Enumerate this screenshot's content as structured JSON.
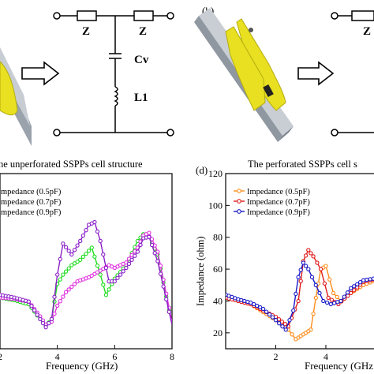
{
  "panel_b_label": "(b)",
  "panel_d_label": "(d)",
  "circuit": {
    "z_left": "Z",
    "z_right": "Z",
    "cv": "Cv",
    "l1": "L1",
    "z_right_partial": "Z"
  },
  "chart_data": [
    {
      "type": "line",
      "title": "he unperforated SSPPs cell structure",
      "xlabel": "Frequency (GHz)",
      "ylabel": "",
      "xlim": [
        2,
        8
      ],
      "ylim": [
        0,
        130
      ],
      "xticks": [
        2,
        4,
        6,
        8
      ],
      "yticks": [],
      "legend_position": "top-left",
      "series": [
        {
          "name": "mpedance (0.5pF)",
          "color": "#1fdc1f",
          "x": [
            2.0,
            2.5,
            3.0,
            3.4,
            3.6,
            3.8,
            4.0,
            4.2,
            4.5,
            4.8,
            5.2,
            5.5,
            5.7,
            6.0,
            6.4,
            6.8,
            7.0,
            7.2,
            7.5,
            8.0
          ],
          "y": [
            38,
            36,
            33,
            22,
            17,
            22,
            48,
            55,
            62,
            66,
            75,
            55,
            40,
            52,
            62,
            80,
            85,
            83,
            70,
            18
          ]
        },
        {
          "name": "mpedance (0.7pF)",
          "color": "#e030e0",
          "x": [
            2.0,
            2.5,
            3.0,
            3.4,
            3.6,
            3.8,
            4.0,
            4.3,
            4.7,
            5.1,
            5.5,
            5.8,
            6.0,
            6.4,
            6.8,
            7.0,
            7.2,
            7.5,
            8.0
          ],
          "y": [
            38,
            37,
            35,
            24,
            18,
            20,
            32,
            42,
            50,
            53,
            58,
            62,
            60,
            64,
            75,
            84,
            86,
            72,
            20
          ]
        },
        {
          "name": "mpedance (0.9pF)",
          "color": "#8a1fc8",
          "x": [
            2.0,
            2.5,
            3.0,
            3.4,
            3.6,
            3.8,
            4.0,
            4.2,
            4.5,
            4.8,
            5.1,
            5.3,
            5.5,
            5.8,
            6.0,
            6.4,
            6.8,
            7.0,
            7.2,
            7.5,
            8.0
          ],
          "y": [
            40,
            38,
            35,
            22,
            16,
            22,
            55,
            78,
            70,
            80,
            92,
            94,
            80,
            50,
            50,
            60,
            72,
            82,
            83,
            65,
            18
          ]
        }
      ]
    },
    {
      "type": "line",
      "title": "The perforated SSPPs cell s",
      "xlabel": "Frequency (GHz",
      "ylabel": "Impedance (ohm)",
      "xlim": [
        0,
        6.3
      ],
      "ylim": [
        10,
        120
      ],
      "xticks": [
        2,
        4
      ],
      "yticks": [
        20,
        40,
        60,
        80,
        100,
        120
      ],
      "legend_position": "top-left",
      "series": [
        {
          "name": "Impedance (0.5pF)",
          "color": "#ff8c1a",
          "x": [
            0.0,
            0.5,
            1.0,
            1.5,
            2.0,
            2.5,
            2.8,
            3.0,
            3.2,
            3.4,
            3.6,
            3.8,
            4.0,
            4.3,
            4.6,
            5.0,
            5.5,
            6.3
          ],
          "y": [
            43,
            40,
            38,
            33,
            28,
            22,
            16,
            18,
            20,
            22,
            42,
            60,
            62,
            45,
            40,
            45,
            50,
            55
          ]
        },
        {
          "name": "Impedance (0.7pF)",
          "color": "#e01a1a",
          "x": [
            0.0,
            0.5,
            1.0,
            1.5,
            2.0,
            2.5,
            2.9,
            3.1,
            3.3,
            3.5,
            3.8,
            4.1,
            4.5,
            5.0,
            5.5,
            6.3
          ],
          "y": [
            42,
            40,
            38,
            34,
            30,
            24,
            40,
            65,
            72,
            68,
            60,
            42,
            38,
            45,
            52,
            55
          ]
        },
        {
          "name": "Impedance (0.9pF)",
          "color": "#1a1ac8",
          "x": [
            0.0,
            0.5,
            1.0,
            1.5,
            2.0,
            2.4,
            2.7,
            2.9,
            3.1,
            3.3,
            3.6,
            3.9,
            4.2,
            4.6,
            5.0,
            5.5,
            6.3
          ],
          "y": [
            44,
            41,
            39,
            35,
            28,
            22,
            34,
            55,
            64,
            60,
            50,
            40,
            38,
            40,
            48,
            53,
            55
          ]
        }
      ]
    }
  ]
}
